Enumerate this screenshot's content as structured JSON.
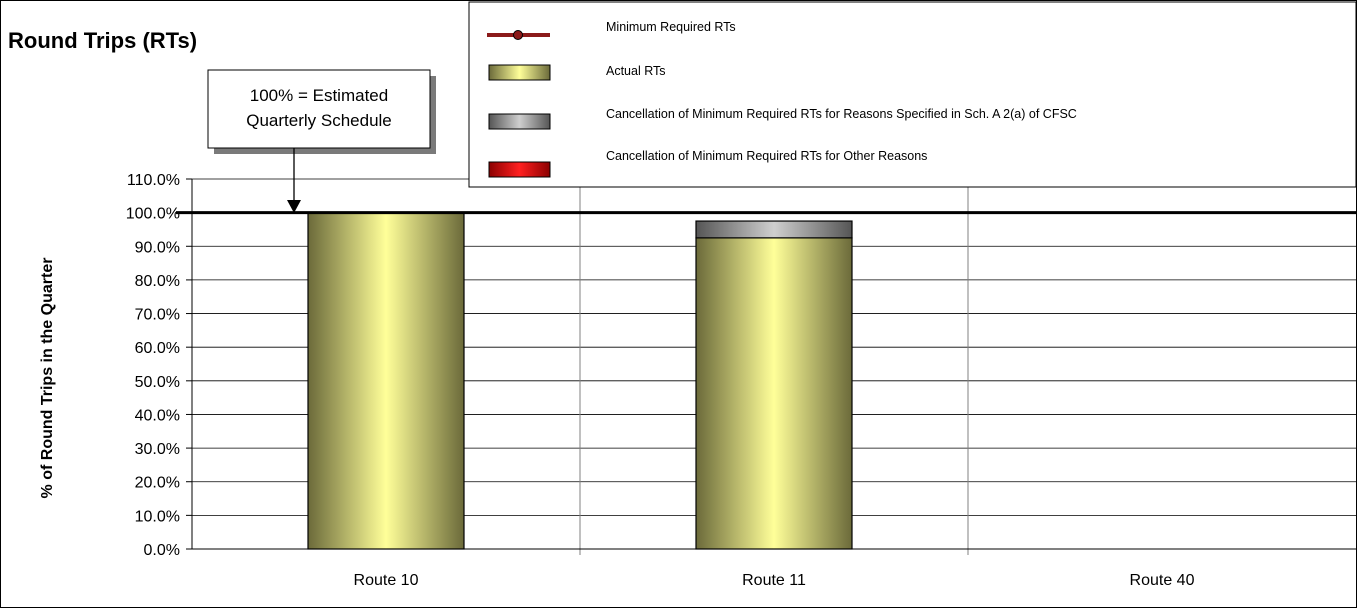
{
  "chart_data": {
    "type": "bar",
    "title": "Round Trips (RTs)",
    "xlabel": "",
    "ylabel": "% of Round Trips in the Quarter",
    "categories": [
      "Route 10",
      "Route 11",
      "Route 40"
    ],
    "ylim": [
      0,
      110
    ],
    "yticks": [
      "0.0%",
      "10.0%",
      "20.0%",
      "30.0%",
      "40.0%",
      "50.0%",
      "60.0%",
      "70.0%",
      "80.0%",
      "90.0%",
      "100.0%",
      "110.0%"
    ],
    "grid": true,
    "stacked": true,
    "series": [
      {
        "name": "Actual RTs",
        "values": [
          100.0,
          92.5,
          0
        ],
        "color": "#ffff99"
      },
      {
        "name": "Cancellation of Minimum Required RTs for Reasons Specified in Sch. A 2(a) of CFSC",
        "values": [
          0,
          5.0,
          0
        ],
        "color": "#b0b0b0"
      },
      {
        "name": "Cancellation of Minimum Required RTs for Other Reasons",
        "values": [
          0,
          0,
          0
        ],
        "color": "#ff0000"
      }
    ],
    "reference_line": {
      "name": "Minimum Required RTs",
      "value": 100.0,
      "color": "#8b0000"
    },
    "legend": {
      "placement": "top-right",
      "entries": [
        "Minimum Required RTs",
        "Actual RTs",
        "Cancellation of Minimum Required RTs for Reasons Specified in Sch. A 2(a) of CFSC",
        "Cancellation of Minimum Required RTs for Other Reasons"
      ]
    },
    "annotation": {
      "line1": "100% = Estimated",
      "line2": "Quarterly Schedule"
    }
  }
}
